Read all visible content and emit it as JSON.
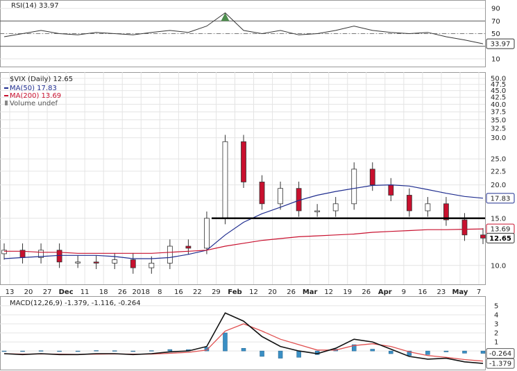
{
  "rsi": {
    "label": "RSI(14) 33.97",
    "ticks": [
      90,
      70,
      50,
      30,
      10
    ],
    "current": "33.97",
    "ylim": [
      0,
      100
    ],
    "overbought": 70,
    "oversold": 30
  },
  "price": {
    "legend": {
      "title": "$VIX (Daily) 12.65",
      "ma50": "MA(50) 17.83",
      "ma200": "MA(200) 13.69",
      "volume": "Volume undef"
    },
    "ticks": [
      "50.0",
      "47.5",
      "45.0",
      "42.5",
      "40.0",
      "37.5",
      "35.0",
      "32.5",
      "30.0",
      "25.0",
      "22.5",
      "20.0",
      "17.5",
      "15.0",
      "12.5",
      "10.0"
    ],
    "tags": {
      "ma50": "17.83",
      "ma200": "13.69",
      "last": "12.65"
    },
    "hline_value": 15.0,
    "x_labels": [
      "13",
      "20",
      "27",
      "Dec",
      "11",
      "18",
      "26",
      "2018",
      "8",
      "16",
      "22",
      "29",
      "Feb",
      "12",
      "20",
      "26",
      "Mar",
      "12",
      "19",
      "26",
      "Apr",
      "9",
      "16",
      "23",
      "May",
      "7"
    ]
  },
  "macd": {
    "label": "MACD(12,26,9) -1.379, -1.116, -0.264",
    "ticks": [
      "5",
      "4",
      "3",
      "2",
      "1",
      "0"
    ],
    "tags": {
      "hist": "-0.264",
      "macd": "-1.379"
    }
  },
  "colors": {
    "up": "#ffffff",
    "down": "#c8102e",
    "ma50": "#1f2d8f",
    "ma200": "#c8102e",
    "hist": "#3a8fc4",
    "macd": "#111111",
    "signal": "#e05050",
    "grid": "#e4e4e4",
    "rsi_fill": "#4d8c4d"
  },
  "chart_data": {
    "type": "candlestick",
    "title": "$VIX (Daily) 12.65",
    "x": [
      "2017-11-13",
      "2017-11-20",
      "2017-11-27",
      "2017-12-04",
      "2017-12-11",
      "2017-12-18",
      "2017-12-26",
      "2018-01-02",
      "2018-01-08",
      "2018-01-16",
      "2018-01-22",
      "2018-01-29",
      "2018-02-05",
      "2018-02-12",
      "2018-02-20",
      "2018-02-26",
      "2018-03-05",
      "2018-03-12",
      "2018-03-19",
      "2018-03-26",
      "2018-04-02",
      "2018-04-09",
      "2018-04-16",
      "2018-04-23",
      "2018-04-30",
      "2018-05-07",
      "2018-05-11"
    ],
    "close": [
      11.4,
      10.7,
      11.4,
      10.3,
      10.3,
      10.2,
      10.5,
      9.8,
      10.2,
      11.8,
      11.6,
      15.0,
      29.0,
      20.5,
      17.0,
      19.4,
      16.0,
      16.0,
      17.0,
      22.9,
      20.0,
      18.3,
      16.0,
      17.0,
      14.8,
      13.0,
      12.65
    ],
    "ma50": [
      10.6,
      10.7,
      10.8,
      10.9,
      10.9,
      10.9,
      10.8,
      10.6,
      10.6,
      10.7,
      11.0,
      11.4,
      13.0,
      14.5,
      15.6,
      16.5,
      17.5,
      18.3,
      18.9,
      19.4,
      19.9,
      20.0,
      19.8,
      19.2,
      18.6,
      18.1,
      17.83
    ],
    "ma200": [
      11.3,
      11.3,
      11.2,
      11.2,
      11.1,
      11.1,
      11.1,
      11.1,
      11.1,
      11.2,
      11.3,
      11.4,
      11.8,
      12.1,
      12.4,
      12.6,
      12.8,
      12.9,
      13.0,
      13.1,
      13.3,
      13.4,
      13.5,
      13.6,
      13.6,
      13.65,
      13.69
    ],
    "rsi": [
      45,
      50,
      55,
      50,
      48,
      52,
      50,
      48,
      52,
      55,
      52,
      62,
      83,
      55,
      50,
      55,
      48,
      50,
      55,
      62,
      55,
      52,
      50,
      52,
      45,
      40,
      33.97
    ],
    "macd": [
      -0.3,
      -0.4,
      -0.3,
      -0.4,
      -0.4,
      -0.3,
      -0.3,
      -0.4,
      -0.3,
      -0.1,
      0.0,
      0.5,
      4.2,
      3.3,
      1.6,
      0.5,
      0.0,
      -0.3,
      0.3,
      1.3,
      1.0,
      0.2,
      -0.6,
      -0.9,
      -0.8,
      -1.2,
      -1.379
    ],
    "signal": [
      -0.3,
      -0.35,
      -0.33,
      -0.35,
      -0.37,
      -0.35,
      -0.33,
      -0.35,
      -0.34,
      -0.26,
      -0.15,
      0.1,
      2.2,
      3.0,
      2.2,
      1.3,
      0.7,
      0.1,
      0.1,
      0.6,
      0.8,
      0.5,
      -0.1,
      -0.5,
      -0.7,
      -0.95,
      -1.116
    ],
    "hist": [
      0.0,
      -0.05,
      0.03,
      -0.05,
      -0.03,
      0.05,
      0.03,
      -0.05,
      0.04,
      0.16,
      0.15,
      0.4,
      2.0,
      0.3,
      -0.6,
      -0.8,
      -0.7,
      -0.4,
      0.2,
      0.7,
      0.2,
      -0.3,
      -0.5,
      -0.4,
      -0.1,
      -0.25,
      -0.264
    ],
    "ylim": [
      8.5,
      50
    ]
  }
}
